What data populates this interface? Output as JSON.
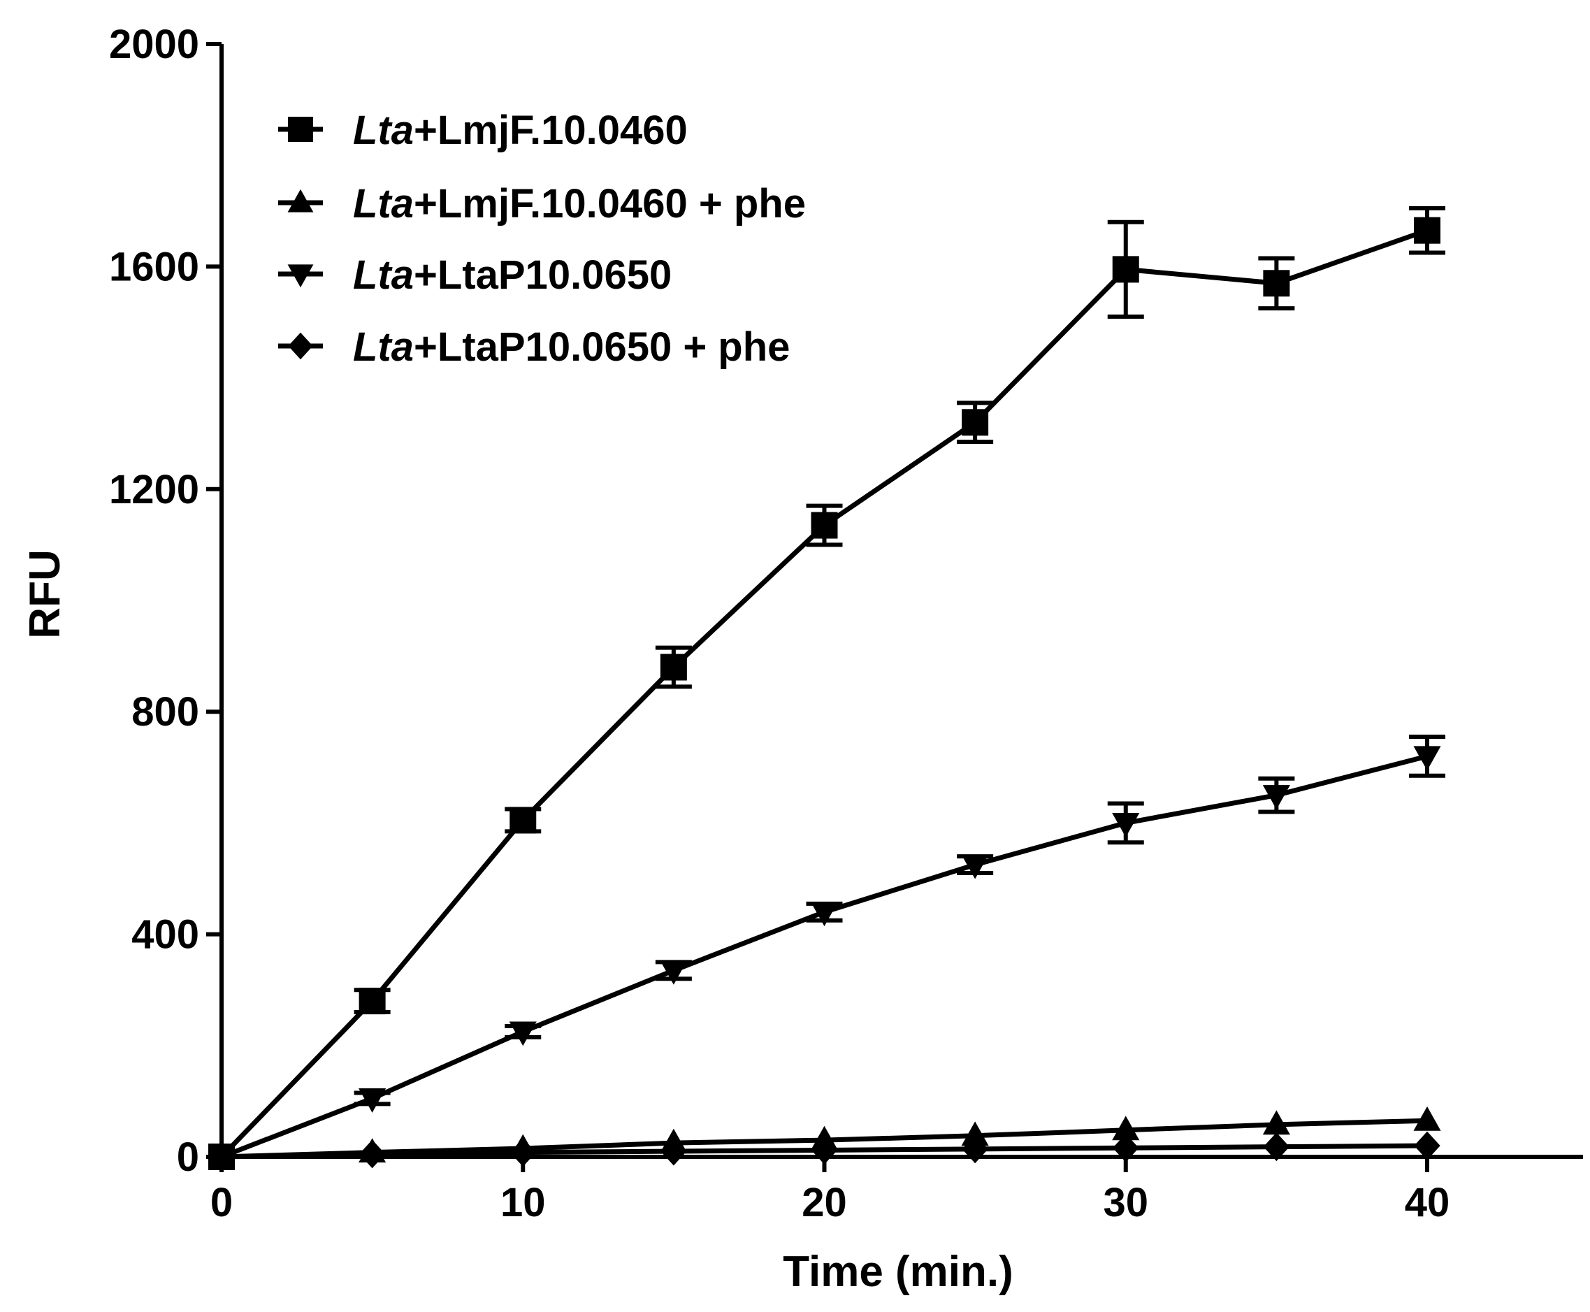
{
  "chart_data": {
    "type": "line",
    "title": "",
    "xlabel": "Time (min.)",
    "ylabel": "RFU",
    "xlim": [
      0,
      45
    ],
    "ylim": [
      0,
      2000
    ],
    "xticks": [
      0,
      10,
      20,
      30,
      40
    ],
    "yticks": [
      0,
      400,
      800,
      1200,
      1600,
      2000
    ],
    "legend_position": "top-left",
    "x": [
      0,
      5,
      10,
      15,
      20,
      25,
      30,
      35,
      40
    ],
    "series": [
      {
        "name_italic": "Lta",
        "name_rest": "+LmjF.10.0460",
        "marker": "square",
        "values": [
          0,
          280,
          605,
          880,
          1135,
          1320,
          1595,
          1570,
          1665
        ],
        "errors": [
          0,
          20,
          20,
          35,
          35,
          35,
          85,
          45,
          40
        ]
      },
      {
        "name_italic": "Lta",
        "name_rest": "+LmjF.10.0460 + phe",
        "marker": "triangle-up",
        "values": [
          0,
          8,
          15,
          25,
          30,
          38,
          48,
          58,
          65
        ],
        "errors": [
          0,
          0,
          0,
          0,
          0,
          0,
          0,
          0,
          0
        ]
      },
      {
        "name_italic": "Lta",
        "name_rest": "+LtaP10.0650",
        "marker": "triangle-down",
        "values": [
          0,
          105,
          225,
          335,
          440,
          525,
          600,
          650,
          720
        ],
        "errors": [
          0,
          10,
          10,
          15,
          15,
          15,
          35,
          30,
          35
        ]
      },
      {
        "name_italic": "Lta",
        "name_rest": "+LtaP10.0650 + phe",
        "marker": "diamond",
        "values": [
          0,
          5,
          8,
          10,
          12,
          14,
          16,
          18,
          20
        ],
        "errors": [
          0,
          0,
          0,
          0,
          0,
          0,
          0,
          0,
          0
        ]
      }
    ]
  }
}
